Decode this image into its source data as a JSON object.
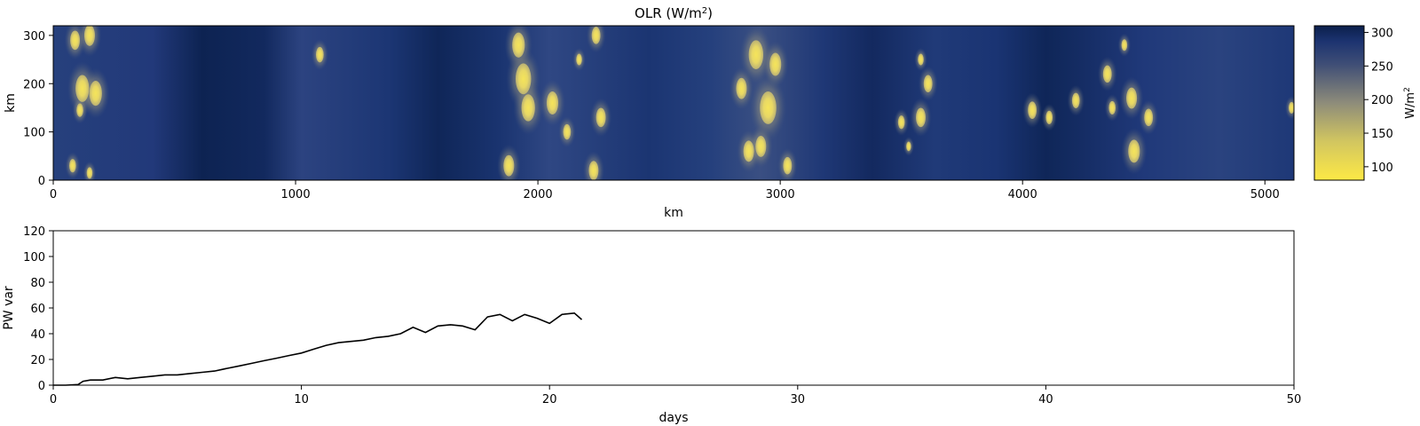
{
  "chart_data": [
    {
      "type": "heatmap",
      "title": "OLR (W/m",
      "title_sup": "2",
      "title_close": ")",
      "xlabel": "km",
      "ylabel": "km",
      "xlim": [
        0,
        5120
      ],
      "ylim": [
        0,
        320
      ],
      "xticks": [
        "0",
        "1000",
        "2000",
        "3000",
        "4000",
        "5000"
      ],
      "yticks": [
        "0",
        "100",
        "200",
        "300"
      ],
      "colorbar": {
        "label": "W/m",
        "label_sup": "2",
        "range": [
          80,
          310
        ],
        "ticks": [
          "100",
          "150",
          "200",
          "250",
          "300"
        ],
        "colors": [
          "#fde945",
          "#a8a27e",
          "#5c6678",
          "#263f7a",
          "#0b1f4b"
        ]
      },
      "blobs": [
        {
          "x": 90,
          "y": 290,
          "r": 20
        },
        {
          "x": 150,
          "y": 300,
          "r": 22
        },
        {
          "x": 120,
          "y": 190,
          "r": 28
        },
        {
          "x": 175,
          "y": 180,
          "r": 26
        },
        {
          "x": 110,
          "y": 145,
          "r": 14
        },
        {
          "x": 80,
          "y": 30,
          "r": 14
        },
        {
          "x": 150,
          "y": 15,
          "r": 12
        },
        {
          "x": 1100,
          "y": 260,
          "r": 16
        },
        {
          "x": 1880,
          "y": 30,
          "r": 22
        },
        {
          "x": 1920,
          "y": 280,
          "r": 26
        },
        {
          "x": 1940,
          "y": 210,
          "r": 32
        },
        {
          "x": 1960,
          "y": 150,
          "r": 28
        },
        {
          "x": 2060,
          "y": 160,
          "r": 24
        },
        {
          "x": 2120,
          "y": 100,
          "r": 16
        },
        {
          "x": 2170,
          "y": 250,
          "r": 12
        },
        {
          "x": 2230,
          "y": 20,
          "r": 20
        },
        {
          "x": 2260,
          "y": 130,
          "r": 20
        },
        {
          "x": 2240,
          "y": 300,
          "r": 18
        },
        {
          "x": 2870,
          "y": 60,
          "r": 22
        },
        {
          "x": 2920,
          "y": 70,
          "r": 22
        },
        {
          "x": 2950,
          "y": 150,
          "r": 34
        },
        {
          "x": 2900,
          "y": 260,
          "r": 30
        },
        {
          "x": 2980,
          "y": 240,
          "r": 24
        },
        {
          "x": 3030,
          "y": 30,
          "r": 18
        },
        {
          "x": 2840,
          "y": 190,
          "r": 22
        },
        {
          "x": 3500,
          "y": 120,
          "r": 14
        },
        {
          "x": 3580,
          "y": 130,
          "r": 20
        },
        {
          "x": 3610,
          "y": 200,
          "r": 18
        },
        {
          "x": 3580,
          "y": 250,
          "r": 12
        },
        {
          "x": 3530,
          "y": 70,
          "r": 10
        },
        {
          "x": 4040,
          "y": 145,
          "r": 18
        },
        {
          "x": 4110,
          "y": 130,
          "r": 14
        },
        {
          "x": 4220,
          "y": 165,
          "r": 16
        },
        {
          "x": 4350,
          "y": 220,
          "r": 18
        },
        {
          "x": 4370,
          "y": 150,
          "r": 14
        },
        {
          "x": 4450,
          "y": 170,
          "r": 22
        },
        {
          "x": 4460,
          "y": 60,
          "r": 24
        },
        {
          "x": 4520,
          "y": 130,
          "r": 18
        },
        {
          "x": 4420,
          "y": 280,
          "r": 12
        },
        {
          "x": 5110,
          "y": 150,
          "r": 12
        }
      ]
    },
    {
      "type": "line",
      "xlabel": "days",
      "ylabel": "PW var",
      "xlim": [
        0,
        50
      ],
      "ylim": [
        0,
        120
      ],
      "xticks": [
        "0",
        "10",
        "20",
        "30",
        "40",
        "50"
      ],
      "yticks": [
        "0",
        "20",
        "40",
        "60",
        "80",
        "100",
        "120"
      ],
      "series": [
        {
          "name": "PW var",
          "x": [
            0,
            0.5,
            1.0,
            1.2,
            1.5,
            2.0,
            2.5,
            3.0,
            3.5,
            4.0,
            4.5,
            5.0,
            5.5,
            6.0,
            6.5,
            7.0,
            7.5,
            8.0,
            8.5,
            9.0,
            9.5,
            10.0,
            10.5,
            11.0,
            11.5,
            12.0,
            12.5,
            13.0,
            13.5,
            14.0,
            14.5,
            15.0,
            15.5,
            16.0,
            16.5,
            17.0,
            17.5,
            18.0,
            18.5,
            19.0,
            19.5,
            20.0,
            20.5,
            21.0,
            21.3
          ],
          "values": [
            0,
            0,
            0.5,
            3,
            4,
            4,
            6,
            5,
            6,
            7,
            8,
            8,
            9,
            10,
            11,
            13,
            15,
            17,
            19,
            21,
            23,
            25,
            28,
            31,
            33,
            34,
            35,
            37,
            38,
            40,
            45,
            41,
            46,
            47,
            46,
            43,
            53,
            55,
            50,
            55,
            52,
            48,
            55,
            56,
            51
          ]
        }
      ]
    }
  ]
}
